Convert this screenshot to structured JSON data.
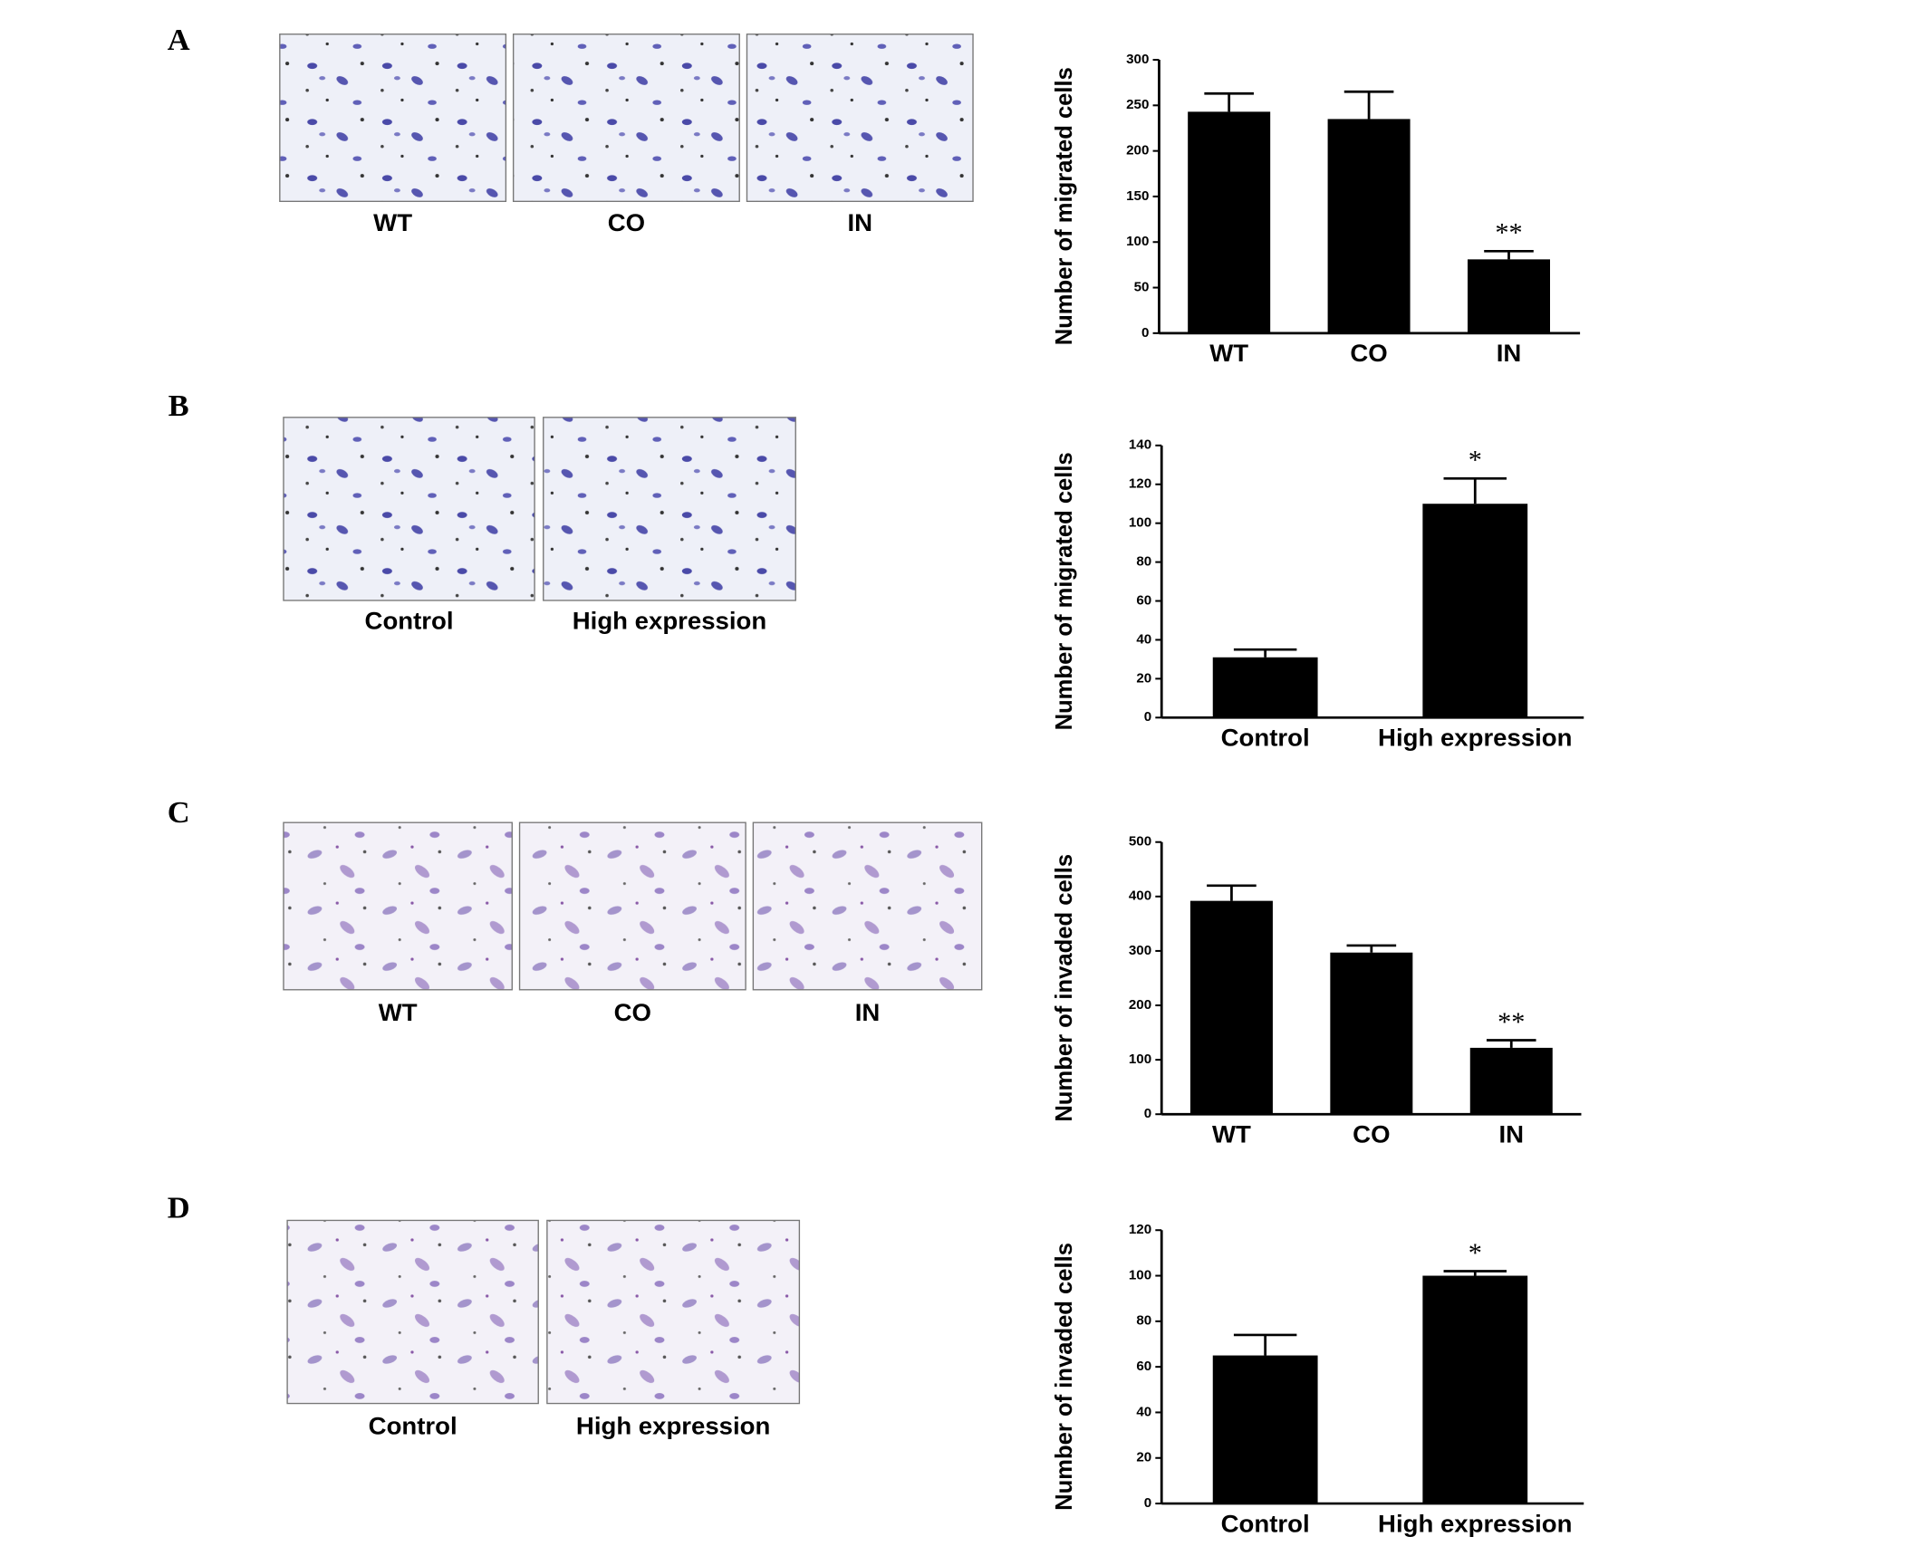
{
  "panels": [
    {
      "letter": "A",
      "images": [
        "WT",
        "CO",
        "IN"
      ]
    },
    {
      "letter": "B",
      "images": [
        "Control",
        "High expression"
      ]
    },
    {
      "letter": "C",
      "images": [
        "WT",
        "CO",
        "IN"
      ]
    },
    {
      "letter": "D",
      "images": [
        "Control",
        "High expression"
      ]
    }
  ],
  "chart_data": [
    {
      "type": "bar",
      "y_label": "Number of migrated cells",
      "categories": [
        "WT",
        "CO",
        "IN"
      ],
      "values": [
        243,
        235,
        81
      ],
      "errors": [
        20,
        30,
        9
      ],
      "annotations": [
        null,
        null,
        "**"
      ],
      "color": "#000000",
      "ylim": [
        0,
        300
      ],
      "yticks": [
        0,
        50,
        100,
        150,
        200,
        250,
        300
      ]
    },
    {
      "type": "bar",
      "y_label": "Number of migrated cells",
      "categories": [
        "Control",
        "High expression"
      ],
      "values": [
        31,
        110
      ],
      "errors": [
        4,
        13
      ],
      "annotations": [
        null,
        "*"
      ],
      "color": "#000000",
      "ylim": [
        0,
        140
      ],
      "yticks": [
        0,
        20,
        40,
        60,
        80,
        100,
        120,
        140
      ]
    },
    {
      "type": "bar",
      "y_label": "Number of invaded cells",
      "categories": [
        "WT",
        "CO",
        "IN"
      ],
      "values": [
        392,
        297,
        122
      ],
      "errors": [
        28,
        13,
        14
      ],
      "annotations": [
        null,
        null,
        "**"
      ],
      "color": "#000000",
      "ylim": [
        0,
        500
      ],
      "yticks": [
        0,
        100,
        200,
        300,
        400,
        500
      ]
    },
    {
      "type": "bar",
      "y_label": "Number of invaded cells",
      "categories": [
        "Control",
        "High expression"
      ],
      "values": [
        65,
        100
      ],
      "errors": [
        9,
        2
      ],
      "annotations": [
        null,
        "*"
      ],
      "color": "#000000",
      "ylim": [
        0,
        120
      ],
      "yticks": [
        0,
        20,
        40,
        60,
        80,
        100,
        120
      ]
    }
  ]
}
